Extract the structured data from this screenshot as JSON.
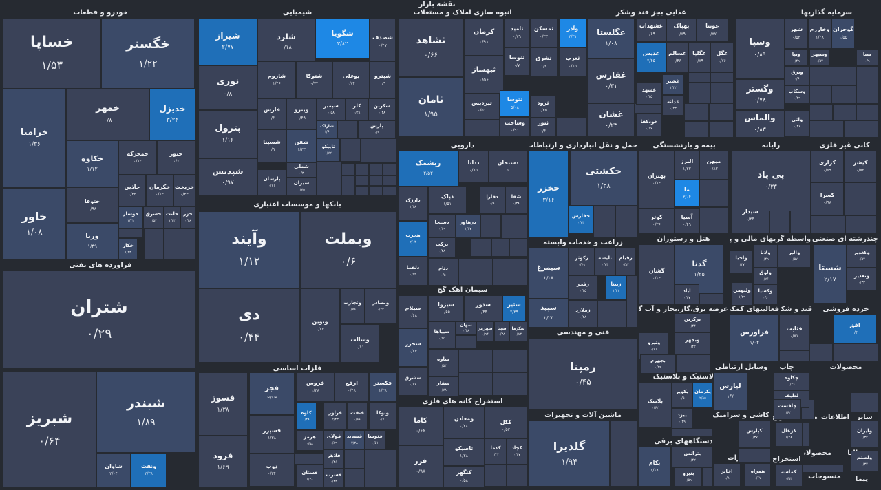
{
  "title": "نقشه بازار",
  "colors": {
    "bg": "#262a31",
    "dark": "#3a4258",
    "mid": "#3b4a68",
    "light": "#1f6fb8",
    "bright": "#1e88e5"
  },
  "sectors": [
    {
      "name": "خودرو و قطعات"
    },
    {
      "name": "شیمیایی"
    },
    {
      "name": "انبوه سازی املاک و مستغلات"
    },
    {
      "name": "غذایی بجز قند وشکر"
    },
    {
      "name": "سرمایه گذاریها"
    },
    {
      "name": "فراورده های نفتی"
    },
    {
      "name": "بانکها و موسسات اعتباری"
    },
    {
      "name": "دارویی"
    },
    {
      "name": "حمل و نقل انبارداری و ارتباطات"
    },
    {
      "name": "بیمه و بازنشستگی"
    },
    {
      "name": "رایانه"
    },
    {
      "name": "کانی غیر فلزی"
    },
    {
      "name": "سیمان آهک گچ"
    },
    {
      "name": "زراعت و خدمات وابسته"
    },
    {
      "name": "هتل و رستوران"
    },
    {
      "name": "واسطه گریهای مالی و پولی"
    },
    {
      "name": "چندرشته ای صنعتی"
    },
    {
      "name": "فعالیتهای کمکی به نهاد"
    },
    {
      "name": "عرضه برق،گاز،بخار و آب گرم"
    },
    {
      "name": "قند و شکر"
    },
    {
      "name": "خرده فروشی"
    },
    {
      "name": "فنی و مهندسی"
    },
    {
      "name": "فلزات اساسی"
    },
    {
      "name": "استخراج کانه های فلزی"
    },
    {
      "name": "ماشین آلات و تجهیزات"
    },
    {
      "name": "لاستیک و پلاستیک"
    },
    {
      "name": "وسایل ارتباطی"
    },
    {
      "name": "چاپ"
    },
    {
      "name": "محصولات"
    },
    {
      "name": "دستگاههای برقی"
    },
    {
      "name": "کاشی و سرامیک"
    },
    {
      "name": "استخراج"
    },
    {
      "name": "محصولات"
    },
    {
      "name": "اطلاعات و"
    },
    {
      "name": "سایر"
    },
    {
      "name": "مخابرات"
    },
    {
      "name": "استخراج"
    },
    {
      "name": "محصولات"
    },
    {
      "name": "فعالیا"
    },
    {
      "name": "منسوجات"
    },
    {
      "name": "پیما"
    }
  ],
  "tiles": [
    {
      "name": "خساپا",
      "value": "۱/۵۳"
    },
    {
      "name": "خگستر",
      "value": "۱/۲۲"
    },
    {
      "name": "خمهر",
      "value": "۰/۸"
    },
    {
      "name": "خدیزل",
      "value": "۳/۲۴"
    },
    {
      "name": "خزامیا",
      "value": "۱/۳۶"
    },
    {
      "name": "خکاوه",
      "value": "۱/۱۲"
    },
    {
      "name": "خمحرکه",
      "value": "۰/۸۲"
    },
    {
      "name": "ختور",
      "value": "۰/۶"
    },
    {
      "name": "خاذین",
      "value": "۰/۳۳"
    },
    {
      "name": "خکرمان",
      "value": "۰/۶۳"
    },
    {
      "name": "خریخت",
      "value": "۰/۴۳"
    },
    {
      "name": "ختوقا",
      "value": "۰/۹۸"
    },
    {
      "name": "خاور",
      "value": "۱/۰۸"
    },
    {
      "name": "ورنا",
      "value": "۱/۴۹"
    },
    {
      "name": "خوساز",
      "value": "۱/۳۲"
    },
    {
      "name": "خشرق",
      "value": "۰/۵۲"
    },
    {
      "name": "خلنت",
      "value": "۱/۳۳"
    },
    {
      "name": "خزر",
      "value": "۰/۴۸"
    },
    {
      "name": "خکار",
      "value": "۱/۲۳"
    },
    {
      "name": "شیراز",
      "value": "۲/۷۷"
    },
    {
      "name": "شلرد",
      "value": "۰/۱۸"
    },
    {
      "name": "شگویا",
      "value": "۳/۸۲"
    },
    {
      "name": "شصدف",
      "value": "۰/۴۷"
    },
    {
      "name": "نوری",
      "value": "۰/۸"
    },
    {
      "name": "شاروم",
      "value": "۱/۴۶"
    },
    {
      "name": "شتوکا",
      "value": "۰/۷۴"
    },
    {
      "name": "بوعلی",
      "value": "۰/۷۴"
    },
    {
      "name": "شپترو",
      "value": "۰/۹"
    },
    {
      "name": "پترول",
      "value": "۱/۱۶"
    },
    {
      "name": "فارس",
      "value": "۰/۶"
    },
    {
      "name": "ویترو",
      "value": "۰/۴۹"
    },
    {
      "name": "شپمبر",
      "value": "۰/۵۸"
    },
    {
      "name": "کلر",
      "value": "۰/۲۸"
    },
    {
      "name": "شکربن",
      "value": "۰/۴۸"
    },
    {
      "name": "شاراک",
      "value": "۱/۶"
    },
    {
      "name": "پارس",
      "value": "۰/۹"
    },
    {
      "name": "شپدیس",
      "value": "۰/۹۷"
    },
    {
      "name": "شسپنا",
      "value": "۰/۹"
    },
    {
      "name": "شفن",
      "value": "۱/۳۳"
    },
    {
      "name": "تاپیکو",
      "value": "۱/۷۲"
    },
    {
      "name": "شملی",
      "value": "۰/۳"
    },
    {
      "name": "پارسان",
      "value": "۰/۷۱"
    },
    {
      "name": "شیران",
      "value": "۰/۷۵"
    },
    {
      "name": "ثشاهد",
      "value": "۰/۶۶"
    },
    {
      "name": "کرمان",
      "value": "۰/۹۱"
    },
    {
      "name": "ثامید",
      "value": "۰/۷۹"
    },
    {
      "name": "ثمسکن",
      "value": "۰/۳۳"
    },
    {
      "name": "وآذر",
      "value": "۲/۳۱"
    },
    {
      "name": "ثنوسا",
      "value": "۰/۷"
    },
    {
      "name": "ثبهساز",
      "value": "۰/۵۶"
    },
    {
      "name": "ثشرق",
      "value": "۱/۲"
    },
    {
      "name": "ثغرب",
      "value": "۰/۶۵"
    },
    {
      "name": "ثامان",
      "value": "۱/۹۵"
    },
    {
      "name": "ثتوسا",
      "value": "۵/۰۸"
    },
    {
      "name": "ثرود",
      "value": "۰/۴۵"
    },
    {
      "name": "ثپردیس",
      "value": "۰/۵۱"
    },
    {
      "name": "وساخت",
      "value": "۰/۹۱"
    },
    {
      "name": "ثنور",
      "value": "۰/۶"
    },
    {
      "name": "غگلستا",
      "value": "۱/۰۸"
    },
    {
      "name": "غشهداب",
      "value": "۰/۶۹"
    },
    {
      "name": "بهپاک",
      "value": "۰/۸۹"
    },
    {
      "name": "غویتا",
      "value": "۰/۷۷"
    },
    {
      "name": "غدیس",
      "value": "۲/۴۵"
    },
    {
      "name": "غسالم",
      "value": "۰/۴۶"
    },
    {
      "name": "غگلپا",
      "value": "۰/۸۹"
    },
    {
      "name": "غگل",
      "value": "۱/۷۶"
    },
    {
      "name": "غفارس",
      "value": "۰/۳۱"
    },
    {
      "name": "غشیر",
      "value": "۱/۳۲"
    },
    {
      "name": "غشهد",
      "value": "۰/۳۵"
    },
    {
      "name": "غدانه",
      "value": "۰/۲۳"
    },
    {
      "name": "غشان",
      "value": "۰/۲۳"
    },
    {
      "name": "خودکفا",
      "value": "۰/۶۷"
    },
    {
      "name": "وسپا",
      "value": "۰/۸۹"
    },
    {
      "name": "شهر",
      "value": "۰/۵۳"
    },
    {
      "name": "وخارزم",
      "value": "۱/۲۸"
    },
    {
      "name": "گوحران",
      "value": "۱/۵۵"
    },
    {
      "name": "ویپا",
      "value": "۰/۴۹"
    },
    {
      "name": "وسپهر",
      "value": "۰/۵۷"
    },
    {
      "name": "صبا",
      "value": "۰/۹"
    },
    {
      "name": "وبرق",
      "value": "۰/۶"
    },
    {
      "name": "وگستر",
      "value": "۰/۷۸"
    },
    {
      "name": "وسکاب",
      "value": "۰/۳۹"
    },
    {
      "name": "والماس",
      "value": "۰/۸۳"
    },
    {
      "name": "واتی",
      "value": "۰/۴۶"
    },
    {
      "name": "شتران",
      "value": "۰/۲۹"
    },
    {
      "name": "شبندر",
      "value": "۱/۸۹"
    },
    {
      "name": "شبریز",
      "value": "۰/۶۴"
    },
    {
      "name": "شاوان",
      "value": "۲/۰۴"
    },
    {
      "name": "ونفت",
      "value": "۲/۳۸"
    },
    {
      "name": "وآیند",
      "value": "۱/۱۲"
    },
    {
      "name": "وبملت",
      "value": "۰/۶"
    },
    {
      "name": "دی",
      "value": "۰/۴۴"
    },
    {
      "name": "وبصادر",
      "value": "۰/۴۲"
    },
    {
      "name": "وتجارت",
      "value": "۰/۷۹"
    },
    {
      "name": "ونوین",
      "value": "۰/۷۴"
    },
    {
      "name": "وسالت",
      "value": "۰/۶۱"
    },
    {
      "name": "ربشمک",
      "value": "۲/۵۲"
    },
    {
      "name": "ددانا",
      "value": "۰/۷۵"
    },
    {
      "name": "دسبحان",
      "value": "۱"
    },
    {
      "name": "دارزک",
      "value": "۱/۶۸"
    },
    {
      "name": "دپاک",
      "value": "۱/۵۱"
    },
    {
      "name": "دقارا",
      "value": "۰/۹"
    },
    {
      "name": "شفا",
      "value": "۰/۳۸"
    },
    {
      "name": "هجرت",
      "value": "۲/۰۳"
    },
    {
      "name": "دسبحا",
      "value": "۰/۶۹"
    },
    {
      "name": "درهاور",
      "value": "۱/۶۷"
    },
    {
      "name": "برکت",
      "value": "۰/۴۸"
    },
    {
      "name": "دلقما",
      "value": "۰/۹۲"
    },
    {
      "name": "دتام",
      "value": "۰/۵"
    },
    {
      "name": "حکشتی",
      "value": "۱/۲۸"
    },
    {
      "name": "حخزر",
      "value": "۳/۱۶"
    },
    {
      "name": "حفارس",
      "value": "۰/۷۳"
    },
    {
      "name": "بهتران",
      "value": "۰/۸۴"
    },
    {
      "name": "البرز",
      "value": "۱/۲۲"
    },
    {
      "name": "میهن",
      "value": "۰/۸۲"
    },
    {
      "name": "ما",
      "value": "۳/۰۴"
    },
    {
      "name": "کوثر",
      "value": "۰/۳۶"
    },
    {
      "name": "آسیا",
      "value": "۰/۴۹"
    },
    {
      "name": "پی پاد",
      "value": "۰/۳۳"
    },
    {
      "name": "سیدار",
      "value": "۱/۳۴"
    },
    {
      "name": "کیشر",
      "value": "۰/۷۲"
    },
    {
      "name": "کرازی",
      "value": "۰/۶۹"
    },
    {
      "name": "کسرا",
      "value": "۰/۹۸"
    },
    {
      "name": "سیلام",
      "value": "۰/۶۸"
    },
    {
      "name": "سیزوا",
      "value": "۰/۵۵"
    },
    {
      "name": "سدور",
      "value": "۰/۴۴"
    },
    {
      "name": "ستیر",
      "value": "۲/۳۹"
    },
    {
      "name": "سیپاها",
      "value": "۰/۹۵"
    },
    {
      "name": "سهان",
      "value": "۰/۶۸"
    },
    {
      "name": "سهرمز",
      "value": "۰/۹۴"
    },
    {
      "name": "سپتا",
      "value": "۰/۳۸"
    },
    {
      "name": "سکرما",
      "value": "۰/۸۳"
    },
    {
      "name": "سخزر",
      "value": "۱/۷۴"
    },
    {
      "name": "ساوه",
      "value": "۰/۵۳"
    },
    {
      "name": "سشرق",
      "value": "۰/۸۶"
    },
    {
      "name": "سفار",
      "value": "۰/۷۸"
    },
    {
      "name": "سیمرغ",
      "value": "۲/۰۸"
    },
    {
      "name": "زکوثر",
      "value": "۰/۷۹"
    },
    {
      "name": "تلیسه",
      "value": "۰/۷۴"
    },
    {
      "name": "زقیام",
      "value": "۰/۸۲"
    },
    {
      "name": "سپید",
      "value": "۲/۲۳"
    },
    {
      "name": "زفجر",
      "value": "۰/۴۵"
    },
    {
      "name": "زبینا",
      "value": "۱/۳۱"
    },
    {
      "name": "زملارد",
      "value": "۰/۲۸"
    },
    {
      "name": "گشان",
      "value": "۰/۱۴"
    },
    {
      "name": "گدنا",
      "value": "۱/۲۵"
    },
    {
      "name": "آباد",
      "value": "۰/۳۷"
    },
    {
      "name": "والبر",
      "value": "۰/۵۷"
    },
    {
      "name": "ولانا",
      "value": "۰/۴۹"
    },
    {
      "name": "واحیا",
      "value": "۰/۳۷"
    },
    {
      "name": "ولوق",
      "value": "۰/۷۶"
    },
    {
      "name": "ولیهمن",
      "value": "۱/۲۹"
    },
    {
      "name": "وکسپا",
      "value": "۰/۶"
    },
    {
      "name": "شستا",
      "value": "۲/۱۷"
    },
    {
      "name": "وکغدیر",
      "value": "۰/۵۷"
    },
    {
      "name": "ونغدیر",
      "value": "۰/۳۳"
    },
    {
      "name": "برکزین",
      "value": "۰/۴۴"
    },
    {
      "name": "فراورس",
      "value": "۱/۰۴"
    },
    {
      "name": "قثابت",
      "value": "۰/۷۱"
    },
    {
      "name": "افق",
      "value": "۰/۴"
    },
    {
      "name": "وبجهر",
      "value": "۰/۴۲"
    },
    {
      "name": "وتیرو",
      "value": "۰/۷۱"
    },
    {
      "name": "رمپنا",
      "value": "۰/۴۵"
    },
    {
      "name": "بجهرم",
      "value": "۰/۲۹"
    },
    {
      "name": "فجر",
      "value": "۲/۱۳"
    },
    {
      "name": "فروس",
      "value": "۱/۳۸"
    },
    {
      "name": "ارفع",
      "value": "۰/۴۸"
    },
    {
      "name": "فکستر",
      "value": "۱/۲۸"
    },
    {
      "name": "فسوژ",
      "value": "۱/۳۸"
    },
    {
      "name": "کاوه",
      "value": "۱/۴۸"
    },
    {
      "name": "فراور",
      "value": "۲/۴۳"
    },
    {
      "name": "فنفت",
      "value": "۰/۸۶"
    },
    {
      "name": "وتوکا",
      "value": "۰/۷۱"
    },
    {
      "name": "فسرب",
      "value": "۰/۲۸"
    },
    {
      "name": "فولای",
      "value": "۰/۸۹"
    },
    {
      "name": "فسدید",
      "value": "۲/۲۸"
    },
    {
      "name": "فنوسا",
      "value": "۰/۵۱"
    },
    {
      "name": "فسپرر",
      "value": "۱/۳۸"
    },
    {
      "name": "هرمز",
      "value": "۰/۵۸"
    },
    {
      "name": "فرود",
      "value": "۱/۶۹"
    },
    {
      "name": "ذوب",
      "value": "۰/۳۴"
    },
    {
      "name": "فلاهر",
      "value": "۰/۴۶"
    },
    {
      "name": "فستان",
      "value": "۱/۲۸"
    },
    {
      "name": "فسرب",
      "value": "۰/۴۴"
    },
    {
      "name": "کاما",
      "value": "۰/۶۶"
    },
    {
      "name": "ومعادن",
      "value": "۰/۲۸"
    },
    {
      "name": "ککل",
      "value": "۰/۵۳"
    },
    {
      "name": "کچاد",
      "value": "۰/۶۷"
    },
    {
      "name": "کدما",
      "value": "۰/۳۴"
    },
    {
      "name": "تاصیکو",
      "value": "۱/۲۸"
    },
    {
      "name": "کنگهر",
      "value": "۰/۵۸"
    },
    {
      "name": "فزر",
      "value": "۰/۹۸"
    },
    {
      "name": "گلدیرا",
      "value": "۱/۹۴"
    },
    {
      "name": "پکرمان",
      "value": "۲/۸۵"
    },
    {
      "name": "پکویر",
      "value": "۰/۵"
    },
    {
      "name": "پلاسک",
      "value": "۰/۶۲"
    },
    {
      "name": "پیزد",
      "value": "۰/۳۹"
    },
    {
      "name": "لپارس",
      "value": "۱/۷"
    },
    {
      "name": "چکاوه",
      "value": "۰/۴۶"
    },
    {
      "name": "لطیف",
      "value": "۰/۴۱"
    },
    {
      "name": "چافست",
      "value": "۰/۶۲"
    },
    {
      "name": "کزغال",
      "value": "۱/۲۸"
    },
    {
      "name": "کپارس",
      "value": "۰/۳۷"
    },
    {
      "name": "بکام",
      "value": "۱/۱۸"
    },
    {
      "name": "بترانس",
      "value": "۰/۴۲"
    },
    {
      "name": "بنیرو",
      "value": "۰/۵۹"
    },
    {
      "name": "اخابر",
      "value": "۱/۸"
    },
    {
      "name": "همراه",
      "value": "۰/۶۷"
    },
    {
      "name": "کماسه",
      "value": "۰/۵۳"
    },
    {
      "name": "وایران",
      "value": "۱/۳۲"
    },
    {
      "name": "ولصنم",
      "value": "۰/۳۷"
    }
  ]
}
